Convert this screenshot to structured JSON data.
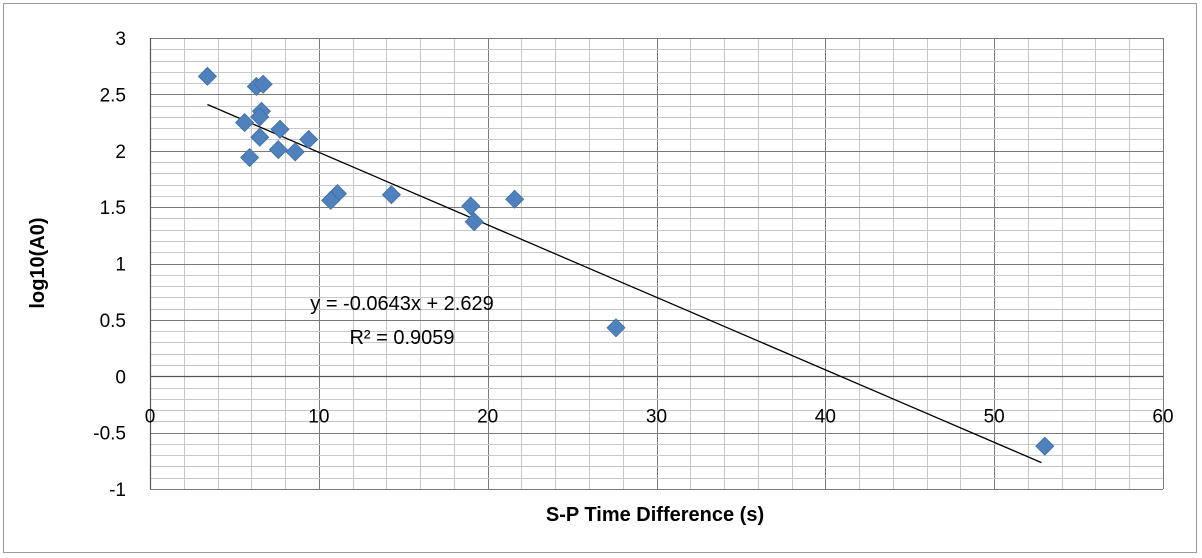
{
  "chart_data": {
    "type": "scatter",
    "title": "",
    "xlabel": "S-P  Time Difference (s)",
    "ylabel": "log10(A0)",
    "xlim": [
      0,
      60
    ],
    "ylim": [
      -1,
      3
    ],
    "x_ticks": [
      "0",
      "10",
      "20",
      "30",
      "40",
      "50",
      "60"
    ],
    "y_ticks": [
      "3",
      "2.5",
      "2",
      "1.5",
      "1",
      "0.5",
      "0",
      "-0.5",
      "-1"
    ],
    "x_minor_step": 2,
    "y_minor_step": 0.1,
    "grid": true,
    "legend": "none",
    "marker": "diamond",
    "marker_color": "#4f81bd",
    "series": [
      {
        "points": [
          {
            "x": 3.4,
            "y": 2.66
          },
          {
            "x": 6.3,
            "y": 2.57
          },
          {
            "x": 6.7,
            "y": 2.59
          },
          {
            "x": 6.6,
            "y": 2.35
          },
          {
            "x": 6.5,
            "y": 2.3
          },
          {
            "x": 5.6,
            "y": 2.25
          },
          {
            "x": 7.7,
            "y": 2.19
          },
          {
            "x": 6.5,
            "y": 2.12
          },
          {
            "x": 9.4,
            "y": 2.1
          },
          {
            "x": 7.6,
            "y": 2.01
          },
          {
            "x": 8.6,
            "y": 1.99
          },
          {
            "x": 5.9,
            "y": 1.94
          },
          {
            "x": 11.1,
            "y": 1.62
          },
          {
            "x": 10.7,
            "y": 1.56
          },
          {
            "x": 14.3,
            "y": 1.61
          },
          {
            "x": 21.6,
            "y": 1.57
          },
          {
            "x": 19.0,
            "y": 1.51
          },
          {
            "x": 19.2,
            "y": 1.37
          },
          {
            "x": 27.6,
            "y": 0.43
          },
          {
            "x": 53.0,
            "y": -0.62
          }
        ]
      }
    ],
    "trendline": {
      "type": "linear",
      "slope": -0.0643,
      "intercept": 2.629,
      "x_range": [
        3.4,
        52.8
      ],
      "equation_text": "y = -0.0643x + 2.629",
      "r2_text": "R² = 0.9059"
    }
  }
}
